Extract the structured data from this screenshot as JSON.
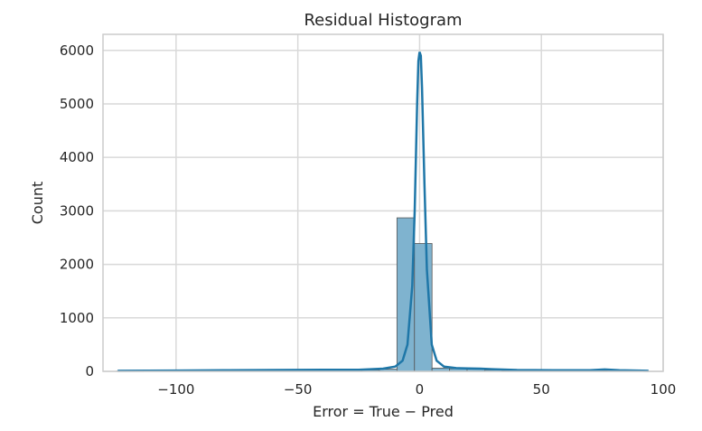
{
  "chart_data": {
    "type": "bar",
    "title": "Residual Histogram",
    "xlabel": "Error = True − Pred",
    "ylabel": "Count",
    "xlim": [
      -130,
      100
    ],
    "ylim": [
      0,
      6300
    ],
    "grid": true,
    "xticks": [
      {
        "value": -100,
        "label": "−100"
      },
      {
        "value": -50,
        "label": "−50"
      },
      {
        "value": 0,
        "label": "0"
      },
      {
        "value": 50,
        "label": "50"
      },
      {
        "value": 100,
        "label": "100"
      }
    ],
    "yticks": [
      {
        "value": 0,
        "label": "0"
      },
      {
        "value": 1000,
        "label": "1000"
      },
      {
        "value": 2000,
        "label": "2000"
      },
      {
        "value": 3000,
        "label": "3000"
      },
      {
        "value": 4000,
        "label": "4000"
      },
      {
        "value": 5000,
        "label": "5000"
      },
      {
        "value": 6000,
        "label": "6000"
      }
    ],
    "bins": [
      {
        "x0": -124.5,
        "x1": -117.3,
        "count": 5
      },
      {
        "x0": -117.3,
        "x1": -110.1,
        "count": 3
      },
      {
        "x0": -110.1,
        "x1": -102.9,
        "count": 4
      },
      {
        "x0": -102.9,
        "x1": -95.7,
        "count": 5
      },
      {
        "x0": -95.7,
        "x1": -88.5,
        "count": 6
      },
      {
        "x0": -88.5,
        "x1": -81.3,
        "count": 8
      },
      {
        "x0": -81.3,
        "x1": -74.1,
        "count": 10
      },
      {
        "x0": -74.1,
        "x1": -66.9,
        "count": 12
      },
      {
        "x0": -66.9,
        "x1": -59.7,
        "count": 10
      },
      {
        "x0": -59.7,
        "x1": -52.5,
        "count": 12
      },
      {
        "x0": -52.5,
        "x1": -45.3,
        "count": 15
      },
      {
        "x0": -45.3,
        "x1": -38.1,
        "count": 15
      },
      {
        "x0": -38.1,
        "x1": -30.9,
        "count": 18
      },
      {
        "x0": -30.9,
        "x1": -23.7,
        "count": 20
      },
      {
        "x0": -23.7,
        "x1": -16.5,
        "count": 25
      },
      {
        "x0": -16.5,
        "x1": -9.3,
        "count": 40
      },
      {
        "x0": -9.3,
        "x1": -2.1,
        "count": 2870
      },
      {
        "x0": -2.1,
        "x1": 5.1,
        "count": 2390
      },
      {
        "x0": 5.1,
        "x1": 12.3,
        "count": 60
      },
      {
        "x0": 12.3,
        "x1": 19.5,
        "count": 50
      },
      {
        "x0": 19.5,
        "x1": 26.7,
        "count": 40
      },
      {
        "x0": 26.7,
        "x1": 33.9,
        "count": 25
      },
      {
        "x0": 33.9,
        "x1": 41.1,
        "count": 15
      },
      {
        "x0": 41.1,
        "x1": 48.3,
        "count": 12
      },
      {
        "x0": 48.3,
        "x1": 55.5,
        "count": 10
      },
      {
        "x0": 55.5,
        "x1": 62.7,
        "count": 8
      },
      {
        "x0": 62.7,
        "x1": 69.9,
        "count": 8
      },
      {
        "x0": 69.9,
        "x1": 77.1,
        "count": 15
      },
      {
        "x0": 77.1,
        "x1": 84.3,
        "count": 8
      },
      {
        "x0": 84.3,
        "x1": 91.5,
        "count": 5
      },
      {
        "x0": 91.5,
        "x1": 94.0,
        "count": 4
      }
    ],
    "kde": {
      "x": [
        -124,
        -100,
        -80,
        -60,
        -40,
        -25,
        -15,
        -10,
        -7,
        -5,
        -3,
        -2,
        -1,
        -0.5,
        0,
        0.5,
        1,
        2,
        3,
        5,
        7,
        10,
        15,
        20,
        25,
        30,
        40,
        55,
        70,
        76,
        82,
        94
      ],
      "y": [
        10,
        15,
        20,
        25,
        28,
        30,
        50,
        90,
        200,
        500,
        1600,
        3000,
        5000,
        5800,
        5970,
        5900,
        5300,
        3500,
        1900,
        500,
        200,
        90,
        60,
        55,
        50,
        40,
        25,
        20,
        22,
        35,
        20,
        10
      ]
    },
    "colors": {
      "bar_fill": "#7fb3cf",
      "bar_edge": "#555555",
      "kde_line": "#1f77a8",
      "grid": "#d9d9d9",
      "frame": "#cccccc"
    }
  }
}
